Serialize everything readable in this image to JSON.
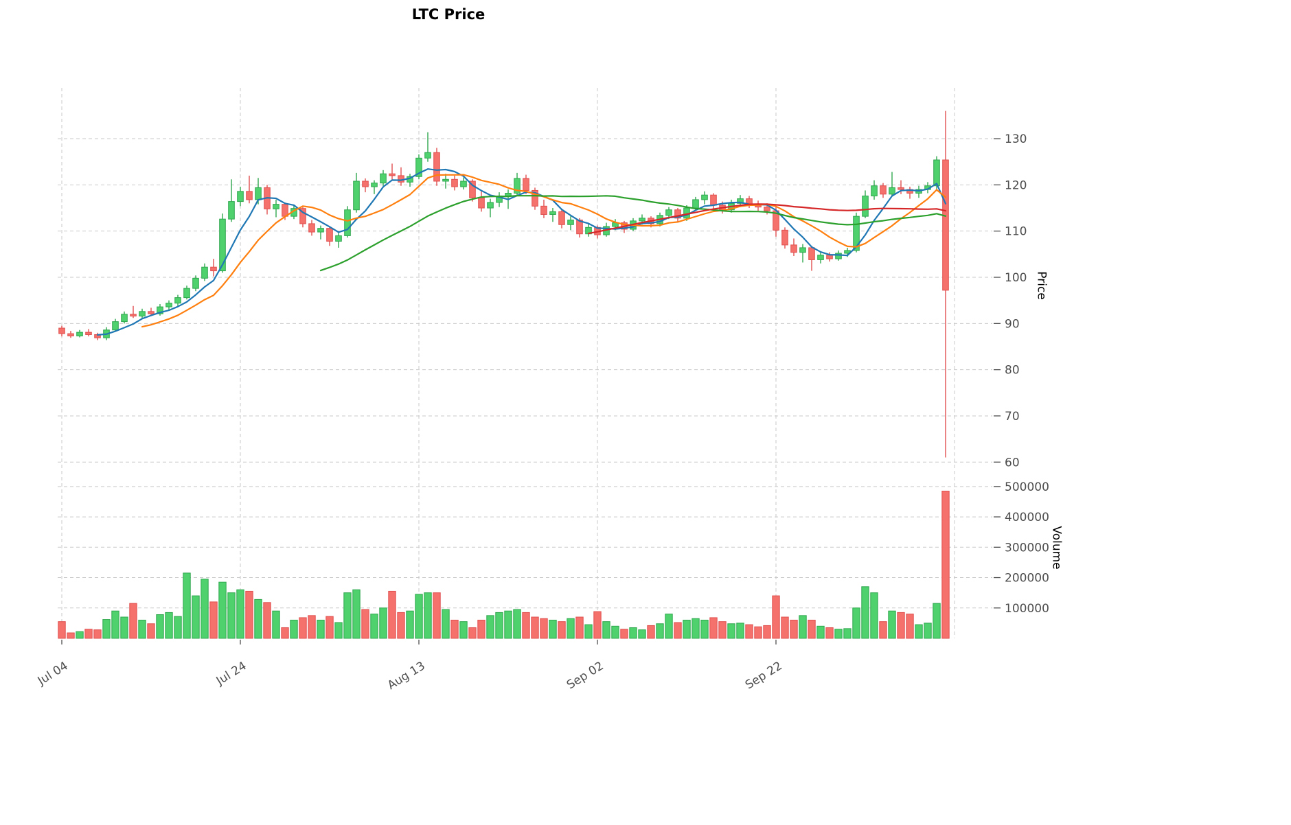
{
  "chart_data": {
    "type": "candlestick",
    "title": "LTC Price",
    "axes": {
      "price_label": "Price",
      "volume_label": "Volume"
    },
    "grid": true,
    "legend_position": "none",
    "price_ticks": [
      60,
      70,
      80,
      90,
      100,
      110,
      120,
      130
    ],
    "volume_ticks": [
      100000,
      200000,
      300000,
      400000,
      500000
    ],
    "x_ticks": [
      {
        "index": 0,
        "label": "Jul 04"
      },
      {
        "index": 20,
        "label": "Jul 24"
      },
      {
        "index": 40,
        "label": "Aug 13"
      },
      {
        "index": 60,
        "label": "Sep 02"
      },
      {
        "index": 80,
        "label": "Sep 22"
      },
      {
        "index": 100,
        "label": ""
      }
    ],
    "price_range": [
      59,
      141
    ],
    "volume_range": [
      0,
      520000
    ],
    "moving_averages": [
      {
        "period": 5,
        "color": "#1f77b4"
      },
      {
        "period": 10,
        "color": "#ff7f0e"
      },
      {
        "period": 30,
        "color": "#2ca02c"
      },
      {
        "period": 60,
        "color": "#d62728"
      }
    ],
    "colors": {
      "up": "#4fd16d",
      "up_edge": "#2fa74e",
      "down": "#f4716c",
      "down_edge": "#e0504f",
      "background": "#ffffff",
      "grid": "#c9c9c9",
      "tick_text": "#4d4d4d"
    },
    "ohlcv_columns": [
      "open",
      "high",
      "low",
      "close",
      "volume"
    ],
    "candles": [
      [
        89.0,
        89.5,
        87.2,
        87.8,
        55000
      ],
      [
        87.8,
        88.4,
        86.9,
        87.3,
        18000
      ],
      [
        87.3,
        88.6,
        87.0,
        88.1,
        22000
      ],
      [
        88.1,
        88.8,
        87.2,
        87.6,
        30000
      ],
      [
        87.6,
        88.0,
        86.4,
        86.9,
        28000
      ],
      [
        86.9,
        89.2,
        86.4,
        88.6,
        62000
      ],
      [
        88.6,
        91.0,
        88.2,
        90.4,
        90000
      ],
      [
        90.4,
        92.6,
        90.0,
        92.0,
        70000
      ],
      [
        92.0,
        93.8,
        91.2,
        91.6,
        115000
      ],
      [
        91.6,
        93.2,
        91.0,
        92.6,
        60000
      ],
      [
        92.6,
        93.4,
        91.6,
        92.1,
        48000
      ],
      [
        92.1,
        94.2,
        91.7,
        93.6,
        78000
      ],
      [
        93.6,
        95.0,
        93.0,
        94.4,
        85000
      ],
      [
        94.4,
        96.2,
        93.8,
        95.6,
        72000
      ],
      [
        95.6,
        98.2,
        95.2,
        97.6,
        215000
      ],
      [
        97.6,
        100.4,
        97.0,
        99.8,
        140000
      ],
      [
        99.8,
        103.0,
        99.2,
        102.2,
        195000
      ],
      [
        102.2,
        104.0,
        100.2,
        101.4,
        120000
      ],
      [
        101.4,
        113.8,
        101.0,
        112.6,
        185000
      ],
      [
        112.6,
        121.2,
        112.0,
        116.4,
        150000
      ],
      [
        116.4,
        119.6,
        115.4,
        118.6,
        160000
      ],
      [
        118.6,
        122.0,
        116.0,
        116.8,
        155000
      ],
      [
        116.8,
        121.5,
        115.8,
        119.4,
        128000
      ],
      [
        119.4,
        120.0,
        113.6,
        114.8,
        118000
      ],
      [
        114.8,
        116.8,
        113.0,
        115.8,
        90000
      ],
      [
        115.8,
        116.2,
        112.4,
        113.2,
        35000
      ],
      [
        113.2,
        115.6,
        112.6,
        114.9,
        60000
      ],
      [
        114.9,
        115.2,
        110.8,
        111.6,
        68000
      ],
      [
        111.6,
        112.4,
        109.0,
        109.8,
        75000
      ],
      [
        109.8,
        111.2,
        108.2,
        110.6,
        60000
      ],
      [
        110.6,
        111.0,
        106.8,
        107.8,
        72000
      ],
      [
        107.8,
        109.6,
        106.4,
        109.0,
        52000
      ],
      [
        109.0,
        115.4,
        108.6,
        114.6,
        150000
      ],
      [
        114.6,
        122.6,
        114.0,
        120.8,
        160000
      ],
      [
        120.8,
        121.4,
        118.4,
        119.6,
        95000
      ],
      [
        119.6,
        121.0,
        118.0,
        120.4,
        80000
      ],
      [
        120.4,
        123.2,
        119.8,
        122.4,
        100000
      ],
      [
        122.4,
        124.6,
        121.0,
        122.0,
        155000
      ],
      [
        122.0,
        123.8,
        119.8,
        120.6,
        85000
      ],
      [
        120.6,
        122.4,
        119.6,
        121.8,
        90000
      ],
      [
        121.8,
        126.6,
        121.2,
        125.8,
        145000
      ],
      [
        125.8,
        131.4,
        125.0,
        127.0,
        150000
      ],
      [
        127.0,
        128.0,
        119.8,
        120.8,
        150000
      ],
      [
        120.8,
        122.4,
        119.2,
        121.2,
        95000
      ],
      [
        121.2,
        122.0,
        118.8,
        119.6,
        60000
      ],
      [
        119.6,
        121.6,
        119.0,
        120.8,
        55000
      ],
      [
        120.8,
        121.2,
        116.4,
        117.2,
        35000
      ],
      [
        117.2,
        118.6,
        114.2,
        115.0,
        60000
      ],
      [
        115.0,
        117.0,
        113.0,
        116.2,
        75000
      ],
      [
        116.2,
        118.4,
        115.2,
        117.6,
        85000
      ],
      [
        117.6,
        119.0,
        114.8,
        118.2,
        90000
      ],
      [
        118.2,
        122.6,
        117.6,
        121.4,
        95000
      ],
      [
        121.4,
        122.2,
        118.0,
        118.8,
        85000
      ],
      [
        118.8,
        119.4,
        114.6,
        115.4,
        70000
      ],
      [
        115.4,
        116.8,
        112.8,
        113.6,
        65000
      ],
      [
        113.6,
        115.0,
        112.0,
        114.2,
        60000
      ],
      [
        114.2,
        114.8,
        110.6,
        111.4,
        55000
      ],
      [
        111.4,
        113.2,
        110.2,
        112.4,
        65000
      ],
      [
        112.4,
        112.8,
        108.6,
        109.4,
        70000
      ],
      [
        109.4,
        111.6,
        108.8,
        110.8,
        45000
      ],
      [
        110.8,
        111.2,
        108.4,
        109.2,
        88000
      ],
      [
        109.2,
        111.8,
        108.8,
        111.0,
        55000
      ],
      [
        111.0,
        112.6,
        110.2,
        111.8,
        40000
      ],
      [
        111.8,
        112.2,
        109.6,
        110.4,
        30000
      ],
      [
        110.4,
        112.8,
        110.0,
        112.2,
        35000
      ],
      [
        112.2,
        113.6,
        111.4,
        112.8,
        28000
      ],
      [
        112.8,
        113.2,
        110.8,
        111.6,
        42000
      ],
      [
        111.6,
        114.0,
        111.0,
        113.4,
        48000
      ],
      [
        113.4,
        115.2,
        112.6,
        114.6,
        80000
      ],
      [
        114.6,
        115.0,
        112.0,
        112.8,
        52000
      ],
      [
        112.8,
        115.6,
        112.2,
        115.0,
        60000
      ],
      [
        115.0,
        117.4,
        114.4,
        116.8,
        65000
      ],
      [
        116.8,
        118.6,
        115.8,
        117.8,
        60000
      ],
      [
        117.8,
        118.2,
        114.8,
        115.6,
        68000
      ],
      [
        115.6,
        116.4,
        113.8,
        114.6,
        55000
      ],
      [
        114.6,
        116.8,
        114.0,
        116.0,
        48000
      ],
      [
        116.0,
        117.8,
        115.2,
        117.0,
        50000
      ],
      [
        117.0,
        117.6,
        115.0,
        115.8,
        45000
      ],
      [
        115.8,
        116.6,
        114.4,
        115.2,
        38000
      ],
      [
        115.2,
        116.0,
        113.6,
        114.4,
        42000
      ],
      [
        114.4,
        115.2,
        108.8,
        110.2,
        140000
      ],
      [
        110.2,
        110.8,
        106.2,
        107.0,
        70000
      ],
      [
        107.0,
        108.4,
        104.6,
        105.4,
        60000
      ],
      [
        105.4,
        107.2,
        103.2,
        106.4,
        75000
      ],
      [
        106.4,
        106.8,
        101.4,
        103.8,
        60000
      ],
      [
        103.8,
        105.6,
        103.0,
        104.8,
        40000
      ],
      [
        104.8,
        105.4,
        103.4,
        104.0,
        35000
      ],
      [
        104.0,
        105.8,
        103.6,
        105.2,
        30000
      ],
      [
        105.2,
        106.4,
        104.4,
        105.8,
        32000
      ],
      [
        105.8,
        114.0,
        105.4,
        113.2,
        100000
      ],
      [
        113.2,
        118.8,
        112.8,
        117.6,
        170000
      ],
      [
        117.6,
        121.0,
        116.8,
        119.8,
        150000
      ],
      [
        119.8,
        120.4,
        117.2,
        118.0,
        55000
      ],
      [
        118.0,
        122.8,
        117.6,
        119.4,
        90000
      ],
      [
        119.4,
        121.0,
        118.0,
        119.0,
        85000
      ],
      [
        119.0,
        119.6,
        117.0,
        118.2,
        80000
      ],
      [
        118.2,
        119.8,
        117.2,
        119.0,
        45000
      ],
      [
        119.0,
        120.6,
        118.2,
        119.8,
        50000
      ],
      [
        119.8,
        126.2,
        119.0,
        125.4,
        115000
      ],
      [
        125.4,
        136.0,
        61.0,
        97.2,
        485000
      ]
    ]
  }
}
